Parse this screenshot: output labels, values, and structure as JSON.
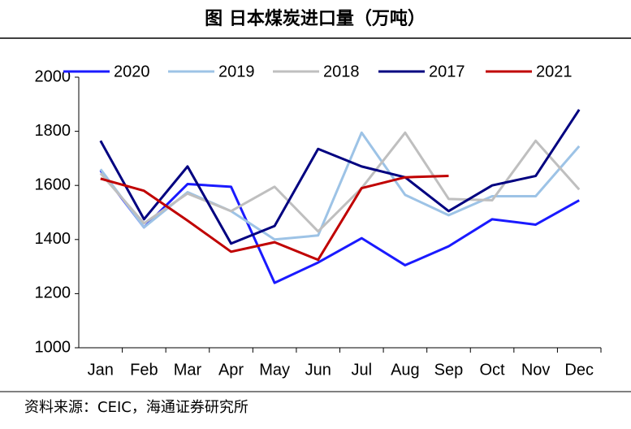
{
  "chart_data": {
    "type": "line",
    "title": "图 日本煤炭进口量（万吨）",
    "source": "资料来源：CEIC，海通证券研究所",
    "categories": [
      "Jan",
      "Feb",
      "Mar",
      "Apr",
      "May",
      "Jun",
      "Jul",
      "Aug",
      "Sep",
      "Oct",
      "Nov",
      "Dec"
    ],
    "series": [
      {
        "name": "2020",
        "color": "#1a1aff",
        "values": [
          1655,
          1445,
          1605,
          1595,
          1240,
          1315,
          1405,
          1305,
          1375,
          1475,
          1455,
          1545
        ]
      },
      {
        "name": "2019",
        "color": "#9dc3e6",
        "values": [
          1660,
          1445,
          1575,
          1505,
          1400,
          1415,
          1795,
          1565,
          1490,
          1560,
          1560,
          1745
        ]
      },
      {
        "name": "2018",
        "color": "#bfbfbf",
        "values": [
          1645,
          1460,
          1570,
          1505,
          1595,
          1430,
          1590,
          1795,
          1550,
          1545,
          1765,
          1585
        ]
      },
      {
        "name": "2017",
        "color": "#000080",
        "values": [
          1765,
          1475,
          1670,
          1385,
          1450,
          1735,
          1670,
          1630,
          1505,
          1600,
          1635,
          1880
        ]
      },
      {
        "name": "2021",
        "color": "#c00000",
        "values": [
          1625,
          1580,
          1470,
          1355,
          1390,
          1325,
          1590,
          1630,
          1635,
          null,
          null,
          null
        ]
      }
    ],
    "ylim": [
      1000,
      2000
    ],
    "yticks": [
      1000,
      1200,
      1400,
      1600,
      1800,
      2000
    ],
    "grid": false,
    "legend": "top"
  }
}
